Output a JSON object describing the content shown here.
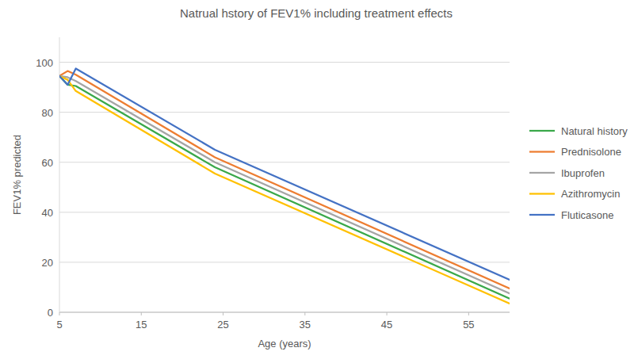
{
  "chart_data": {
    "type": "line",
    "title": "Natrual hstory of FEV1%  including treatment effects",
    "x_label": "Age (years)",
    "y_label": "FEV1% predicted",
    "x": [
      5,
      6,
      7,
      24,
      60
    ],
    "series": [
      {
        "name": "Natural history",
        "color": "#3aa84a",
        "values": [
          94.5,
          91,
          90.5,
          58,
          5.5
        ]
      },
      {
        "name": "Prednisolone",
        "color": "#ed7d31",
        "values": [
          94.5,
          96.5,
          95,
          62,
          9.5
        ]
      },
      {
        "name": "Ibuprofen",
        "color": "#a5a5a5",
        "values": [
          94.5,
          94,
          92.5,
          60,
          7.5
        ]
      },
      {
        "name": "Azithromycin",
        "color": "#ffc000",
        "values": [
          94.5,
          93,
          88.5,
          55.5,
          3.5
        ]
      },
      {
        "name": "Fluticasone",
        "color": "#4472c4",
        "values": [
          94.5,
          91,
          97.5,
          65,
          13
        ]
      }
    ],
    "xlim": [
      5,
      60
    ],
    "xticks": [
      5,
      15,
      25,
      35,
      45,
      55
    ],
    "ylim": [
      0,
      110
    ],
    "yticks": [
      0,
      20,
      40,
      60,
      80,
      100
    ],
    "grid": true,
    "legend": "right"
  }
}
